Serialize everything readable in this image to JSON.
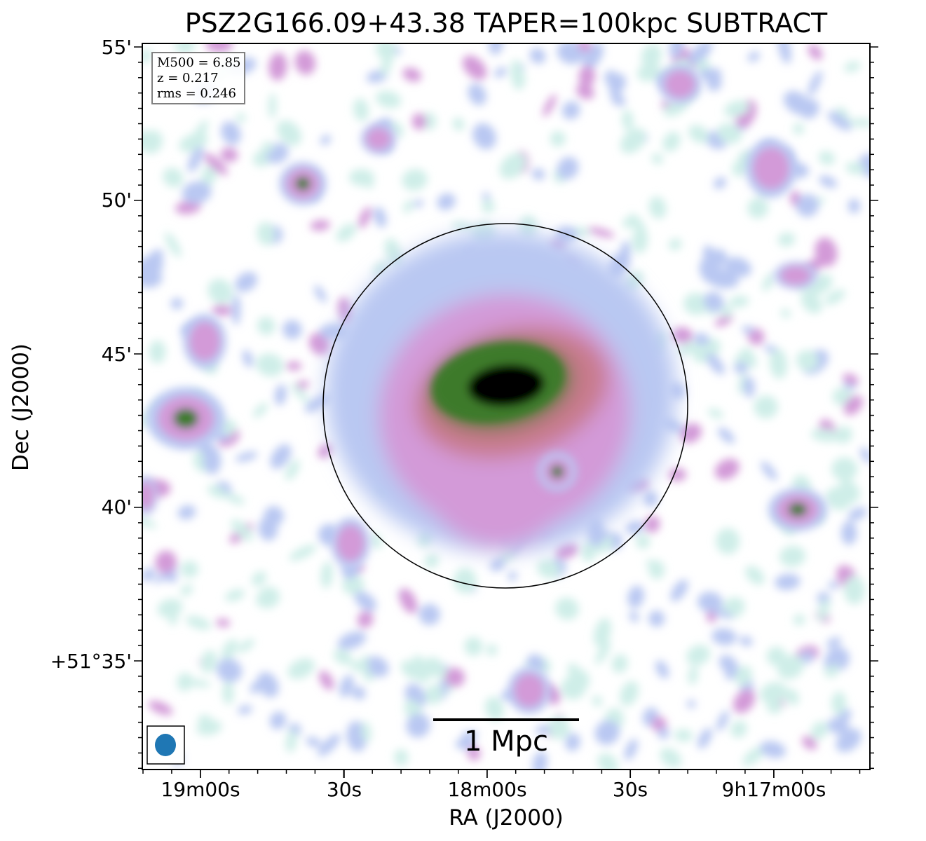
{
  "title": "PSZ2G166.09+43.38 TAPER=100kpc SUBTRACT",
  "info": {
    "m500": "M500 = 6.85",
    "z": "z = 0.217",
    "rms": "rms = 0.246"
  },
  "scalebar": {
    "label": "1 Mpc"
  },
  "colors": {
    "background": "#ffffff",
    "frame": "#000000",
    "beam": "#1f77b4",
    "colormap": [
      "#ffffff",
      "#cfeee8",
      "#b9c8f2",
      "#d39ad8",
      "#c87a8c",
      "#3c7a2c",
      "#000000"
    ]
  },
  "chart_data": {
    "type": "heatmap",
    "title": "PSZ2G166.09+43.38 TAPER=100kpc SUBTRACT",
    "xlabel": "RA (J2000)",
    "ylabel": "Dec (J2000)",
    "xticks": [
      "19m00s",
      "30s",
      "18m00s",
      "30s",
      "9h17m00s"
    ],
    "yticks": [
      "55'",
      "50'",
      "45'",
      "40'",
      "+51°35'"
    ],
    "colormap": "cubehelix-like (white → cyan → lavender → pink → green → black)",
    "annotations": [
      "circle centered on cluster",
      "beam ellipse bottom-left",
      "1 Mpc scale bar"
    ],
    "sources": [
      {
        "ra": "9h17m59s",
        "dec": "51°43.7'",
        "peak": 1.0,
        "note": "main cluster emission"
      },
      {
        "ra": "9h18m35s",
        "dec": "51°50.6'",
        "peak": 0.75
      },
      {
        "ra": "9h19m05s",
        "dec": "51°42.9'",
        "peak": 0.75
      },
      {
        "ra": "9h17m44s",
        "dec": "51°41.1'",
        "peak": 0.75
      },
      {
        "ra": "9h16m57s",
        "dec": "51°39.9'",
        "peak": 0.8
      }
    ]
  }
}
